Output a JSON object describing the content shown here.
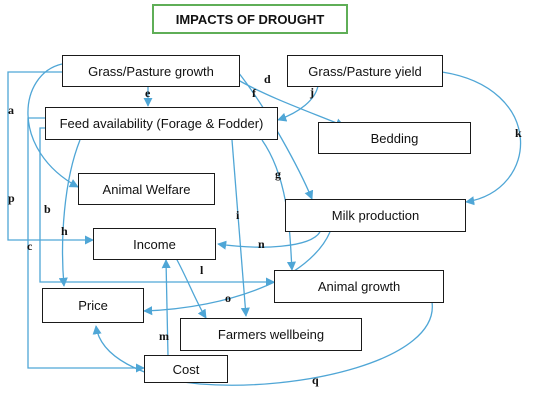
{
  "title": "IMPACTS OF DROUGHT",
  "colors": {
    "arrow": "#4fa6d6",
    "border": "#1a1a1a",
    "title_border": "#5fae57"
  },
  "nodes": {
    "grass_growth": "Grass/Pasture growth",
    "grass_yield": "Grass/Pasture yield",
    "feed": "Feed availability (Forage & Fodder)",
    "bedding": "Bedding",
    "welfare": "Animal Welfare",
    "milk": "Milk production",
    "income": "Income",
    "growth": "Animal growth",
    "price": "Price",
    "wellbeing": "Farmers wellbeing",
    "cost": "Cost"
  },
  "links": {
    "a": "a",
    "b": "b",
    "c": "c",
    "d": "d",
    "e": "e",
    "f": "f",
    "g": "g",
    "h": "h",
    "i": "i",
    "j": "j",
    "k": "k",
    "l": "l",
    "m": "m",
    "n": "n",
    "o": "o",
    "p": "p",
    "q": "q"
  }
}
